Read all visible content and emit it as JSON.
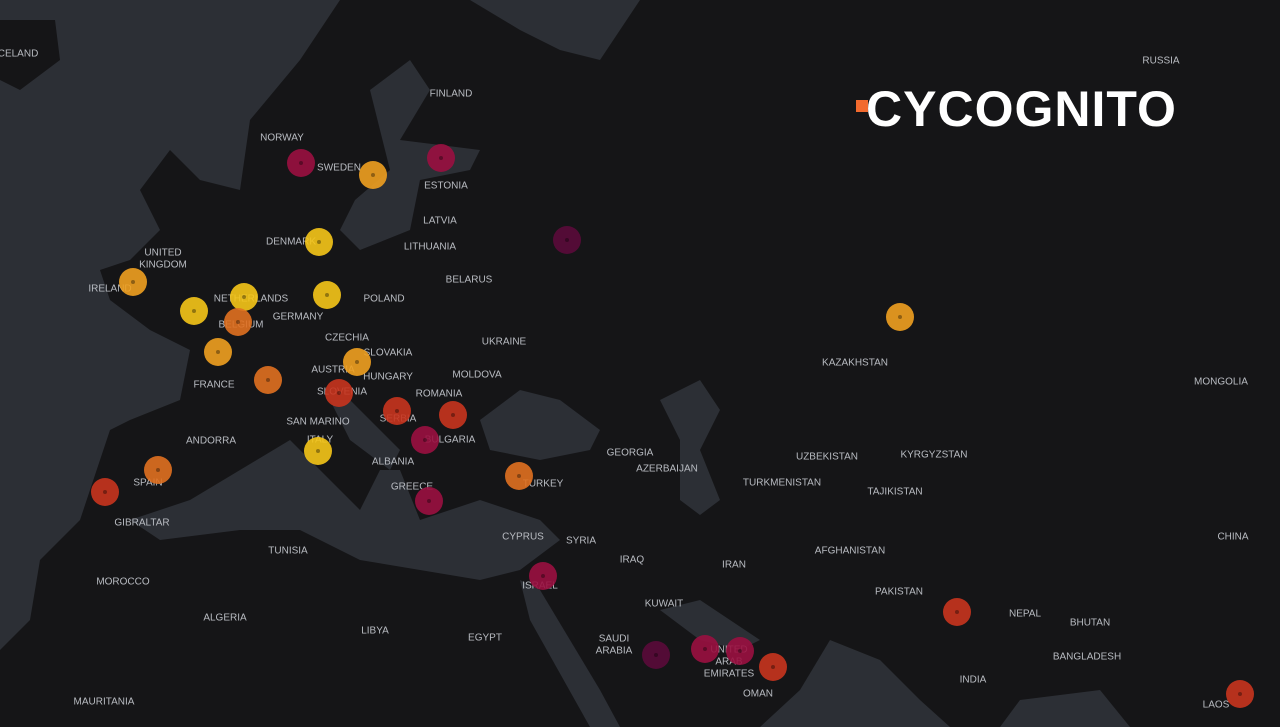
{
  "logo": "CYCOGNITO",
  "labels": [
    "CELAND",
    "RUSSIA",
    "FINLAND",
    "NORWAY",
    "SWEDEN",
    "ESTONIA",
    "LATVIA",
    "DENMARK",
    "LITHUANIA",
    [
      "UNITED",
      "KINGDOM"
    ],
    "BELARUS",
    "IRELAND",
    "NETHERLANDS",
    "POLAND",
    "GERMANY",
    "BELGIUM",
    "CZECHIA",
    "UKRAINE",
    "SLOVAKIA",
    "KAZAKHSTAN",
    "AUSTRIA",
    "HUNGARY",
    "MOLDOVA",
    "FRANCE",
    "MONGOLIA",
    "SLOVENIA",
    "ROMANIA",
    "SERBIA",
    "SAN MARINO",
    "ANDORRA",
    "BULGARIA",
    "ITALY",
    "GEORGIA",
    "UZBEKISTAN",
    "KYRGYZSTAN",
    "ALBANIA",
    "AZERBAIJAN",
    "SPAIN",
    "TURKEY",
    "TURKMENISTAN",
    "GREECE",
    "TAJIKISTAN",
    "GIBRALTAR",
    "CYPRUS",
    "SYRIA",
    "CHINA",
    "TUNISIA",
    "AFGHANISTAN",
    "IRAQ",
    "IRAN",
    "MOROCCO",
    "ISRAEL",
    "PAKISTAN",
    "KUWAIT",
    "NEPAL",
    "ALGERIA",
    "BHUTAN",
    "LIBYA",
    [
      "SAUDI",
      "ARABIA"
    ],
    "EGYPT",
    "BANGLADESH",
    [
      "UNITED",
      "ARAB",
      "EMIRATES"
    ],
    "INDIA",
    "OMAN",
    "MAURITANIA",
    "LAOS"
  ]
}
